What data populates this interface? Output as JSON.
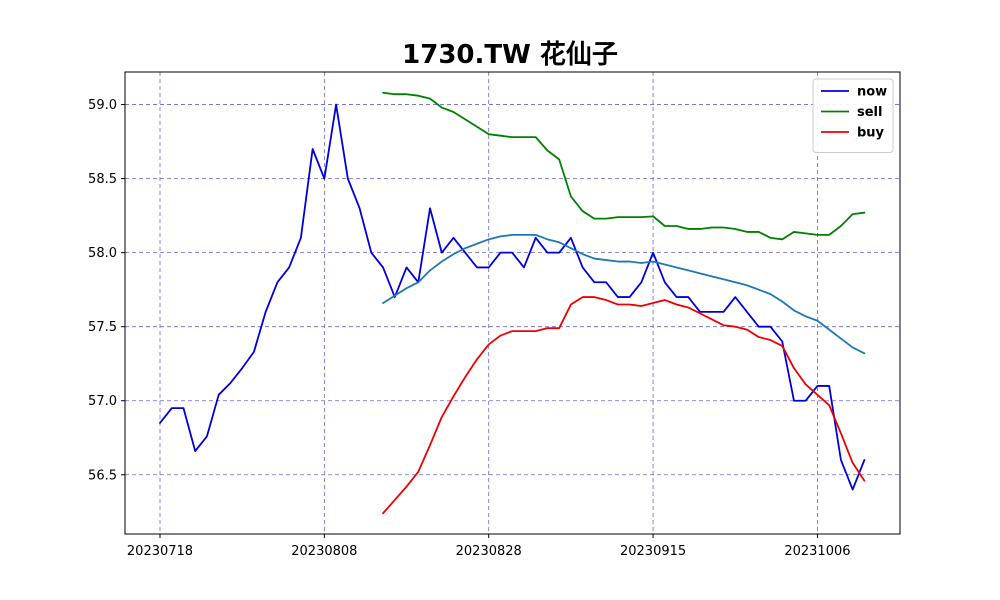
{
  "chart_data": {
    "type": "line",
    "title": "1730.TW 花仙子",
    "xlabel": "",
    "ylabel": "",
    "x_tick_labels": [
      "20230718",
      "20230808",
      "20230828",
      "20230915",
      "20231006"
    ],
    "x_tick_index": [
      0,
      14,
      28,
      42,
      56
    ],
    "ylim": [
      56.1,
      59.22
    ],
    "y_ticks": [
      56.5,
      57.0,
      57.5,
      58.0,
      58.5,
      59.0
    ],
    "y_tick_labels": [
      "56.5",
      "57.0",
      "57.5",
      "58.0",
      "58.5",
      "59.0"
    ],
    "grid": true,
    "legend_position": "top-right",
    "series": [
      {
        "name": "now",
        "color": "#0000dd",
        "start": 0,
        "values": [
          56.85,
          56.95,
          56.95,
          56.66,
          56.76,
          57.04,
          57.12,
          57.22,
          57.33,
          57.6,
          57.8,
          57.9,
          58.1,
          58.7,
          58.5,
          59.0,
          58.5,
          58.3,
          58.0,
          57.9,
          57.7,
          57.9,
          57.8,
          58.3,
          58.0,
          58.1,
          58.0,
          57.9,
          57.9,
          58.0,
          58.0,
          57.9,
          58.1,
          58.0,
          58.0,
          58.1,
          57.9,
          57.8,
          57.8,
          57.7,
          57.7,
          57.8,
          58.0,
          57.8,
          57.7,
          57.7,
          57.6,
          57.6,
          57.6,
          57.7,
          57.6,
          57.5,
          57.5,
          57.4,
          57.0,
          57.0,
          57.1,
          57.1,
          56.6,
          56.4,
          56.6
        ]
      },
      {
        "name": "sell",
        "color": "#008000",
        "start": 19,
        "values": [
          59.08,
          59.07,
          59.07,
          59.06,
          59.04,
          58.98,
          58.95,
          58.9,
          58.85,
          58.8,
          58.79,
          58.78,
          58.78,
          58.78,
          58.69,
          58.63,
          58.38,
          58.28,
          58.23,
          58.23,
          58.24,
          58.24,
          58.24,
          58.245,
          58.18,
          58.18,
          58.16,
          58.16,
          58.17,
          58.17,
          58.16,
          58.14,
          58.14,
          58.1,
          58.09,
          58.14,
          58.13,
          58.12,
          58.12,
          58.18,
          58.26,
          58.27
        ]
      },
      {
        "name": "buy",
        "color": "#ee0000",
        "start": 19,
        "values": [
          56.24,
          56.33,
          56.42,
          56.52,
          56.7,
          56.89,
          57.03,
          57.16,
          57.28,
          57.38,
          57.44,
          57.47,
          57.47,
          57.47,
          57.49,
          57.49,
          57.65,
          57.7,
          57.7,
          57.68,
          57.65,
          57.65,
          57.64,
          57.66,
          57.68,
          57.65,
          57.63,
          57.59,
          57.55,
          57.51,
          57.5,
          57.48,
          57.43,
          57.41,
          57.37,
          57.22,
          57.11,
          57.04,
          56.97,
          56.78,
          56.58,
          56.46
        ]
      },
      {
        "color": "#1f77b4",
        "start": 19,
        "values": [
          57.66,
          57.71,
          57.76,
          57.8,
          57.88,
          57.94,
          57.99,
          58.03,
          58.06,
          58.09,
          58.11,
          58.12,
          58.12,
          58.12,
          58.09,
          58.07,
          58.03,
          57.99,
          57.96,
          57.95,
          57.94,
          57.94,
          57.93,
          57.94,
          57.92,
          57.9,
          57.88,
          57.86,
          57.84,
          57.82,
          57.8,
          57.78,
          57.75,
          57.72,
          57.67,
          57.61,
          57.57,
          57.54,
          57.48,
          57.42,
          57.36,
          57.32
        ]
      }
    ]
  }
}
